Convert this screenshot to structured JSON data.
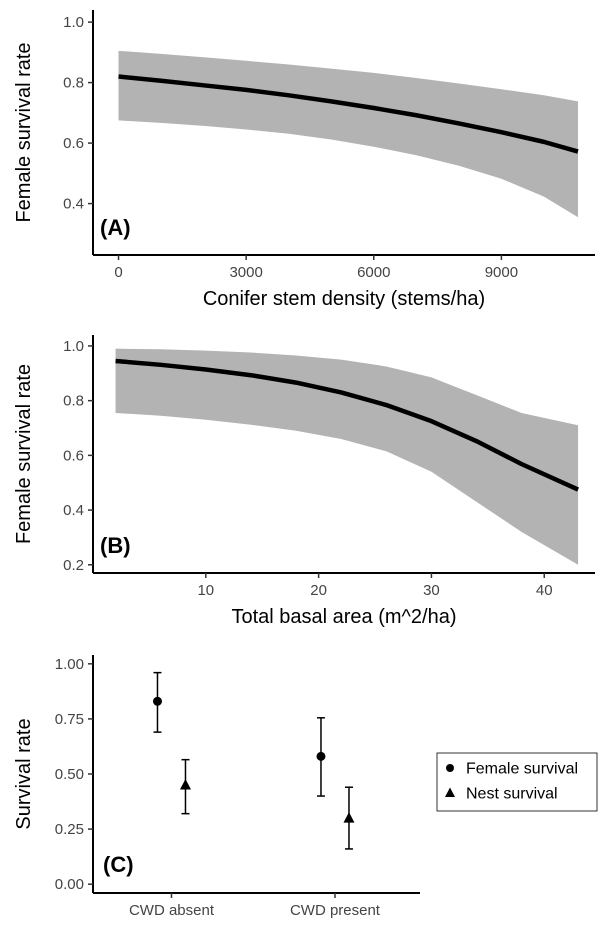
{
  "chart_data": [
    {
      "type": "line",
      "panel_label": "(A)",
      "xlabel": "Conifer stem density (stems/ha)",
      "ylabel": "Female survival rate",
      "xlim": [
        -600,
        11200
      ],
      "ylim": [
        0.23,
        1.04
      ],
      "xticks": [
        0,
        3000,
        6000,
        9000
      ],
      "yticks": [
        0.4,
        0.6,
        0.8,
        1.0
      ],
      "xtick_labels": [
        "0",
        "3000",
        "6000",
        "9000"
      ],
      "ytick_labels": [
        "0.4",
        "0.6",
        "0.8",
        "1.0"
      ],
      "series": [
        {
          "x": [
            0,
            1000,
            2000,
            3000,
            4000,
            5000,
            6000,
            7000,
            8000,
            9000,
            10000,
            10800
          ],
          "y": [
            0.82,
            0.806,
            0.791,
            0.776,
            0.758,
            0.738,
            0.716,
            0.692,
            0.665,
            0.636,
            0.604,
            0.572
          ],
          "lower": [
            0.675,
            0.667,
            0.657,
            0.645,
            0.631,
            0.612,
            0.588,
            0.56,
            0.525,
            0.482,
            0.423,
            0.355
          ],
          "upper": [
            0.905,
            0.895,
            0.884,
            0.872,
            0.86,
            0.846,
            0.832,
            0.815,
            0.797,
            0.778,
            0.758,
            0.738
          ]
        }
      ],
      "grid": false,
      "colors": {
        "line": "#000000",
        "ribbon": "#b3b3b3"
      }
    },
    {
      "type": "line",
      "panel_label": "(B)",
      "xlabel": "Total basal area (m^2/ha)",
      "ylabel": "Female survival rate",
      "xlim": [
        0,
        44.5
      ],
      "ylim": [
        0.17,
        1.04
      ],
      "xticks": [
        10,
        20,
        30,
        40
      ],
      "yticks": [
        0.2,
        0.4,
        0.6,
        0.8,
        1.0
      ],
      "xtick_labels": [
        "10",
        "20",
        "30",
        "40"
      ],
      "ytick_labels": [
        "0.2",
        "0.4",
        "0.6",
        "0.8",
        "1.0"
      ],
      "series": [
        {
          "x": [
            2,
            6,
            10,
            14,
            18,
            22,
            26,
            30,
            34,
            38,
            43
          ],
          "y": [
            0.945,
            0.931,
            0.914,
            0.893,
            0.866,
            0.83,
            0.784,
            0.725,
            0.652,
            0.568,
            0.475
          ],
          "lower": [
            0.755,
            0.745,
            0.73,
            0.712,
            0.69,
            0.66,
            0.615,
            0.54,
            0.43,
            0.32,
            0.2
          ],
          "upper": [
            0.99,
            0.988,
            0.983,
            0.976,
            0.965,
            0.95,
            0.925,
            0.885,
            0.82,
            0.755,
            0.71
          ]
        }
      ],
      "grid": false,
      "colors": {
        "line": "#000000",
        "ribbon": "#b3b3b3"
      }
    },
    {
      "type": "scatter",
      "panel_label": "(C)",
      "xlabel": "",
      "ylabel": "Survival rate",
      "categories": [
        "CWD absent",
        "CWD present"
      ],
      "ylim": [
        -0.04,
        1.04
      ],
      "yticks": [
        0.0,
        0.25,
        0.5,
        0.75,
        1.0
      ],
      "ytick_labels": [
        "0.00",
        "0.25",
        "0.50",
        "0.75",
        "1.00"
      ],
      "series": [
        {
          "name": "Female survival",
          "marker": "circle",
          "values": [
            0.83,
            0.58
          ],
          "lower": [
            0.69,
            0.4
          ],
          "upper": [
            0.96,
            0.755
          ]
        },
        {
          "name": "Nest survival",
          "marker": "triangle",
          "values": [
            0.45,
            0.3
          ],
          "lower": [
            0.32,
            0.16
          ],
          "upper": [
            0.565,
            0.44
          ]
        }
      ],
      "legend_position": "right",
      "grid": false
    }
  ]
}
